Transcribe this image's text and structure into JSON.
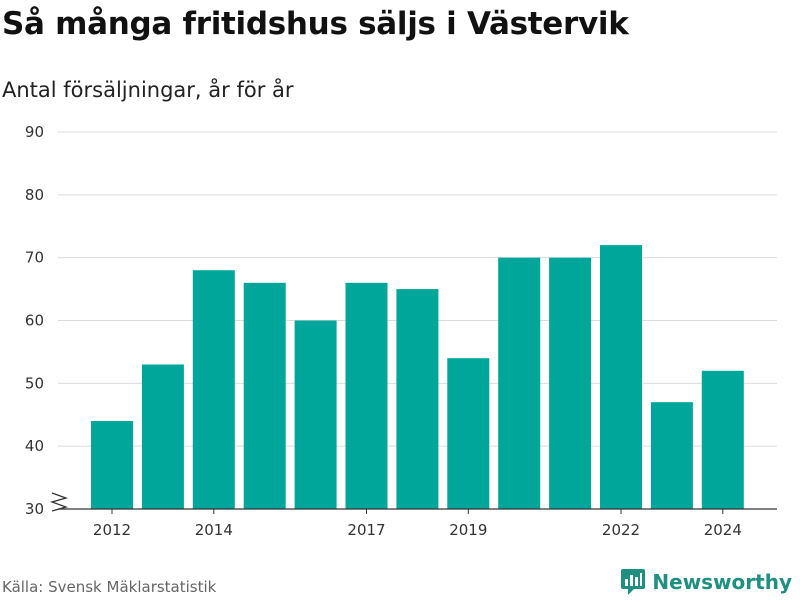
{
  "title": "Så många fritidshus säljs i Västervik",
  "subtitle": "Antal försäljningar, år för år",
  "source": "Källa: Svensk Mäklarstatistik",
  "brand": {
    "name": "Newsworthy",
    "icon": "newsworthy-logo-icon",
    "color": "#1e8f80"
  },
  "chart_data": {
    "type": "bar",
    "categories": [
      "2012",
      "2013",
      "2014",
      "2015",
      "2016",
      "2017",
      "2018",
      "2019",
      "2020",
      "2021",
      "2022",
      "2023",
      "2024"
    ],
    "values": [
      44,
      53,
      68,
      66,
      60,
      66,
      65,
      54,
      70,
      70,
      72,
      47,
      52
    ],
    "x_tick_labels": [
      "2012",
      "2014",
      "2017",
      "2019",
      "2022",
      "2024"
    ],
    "y_ticks": [
      30,
      40,
      50,
      60,
      70,
      80,
      90
    ],
    "ylim": [
      30,
      90
    ],
    "axis_break": true,
    "grid": true,
    "bar_color": "#00a699"
  }
}
